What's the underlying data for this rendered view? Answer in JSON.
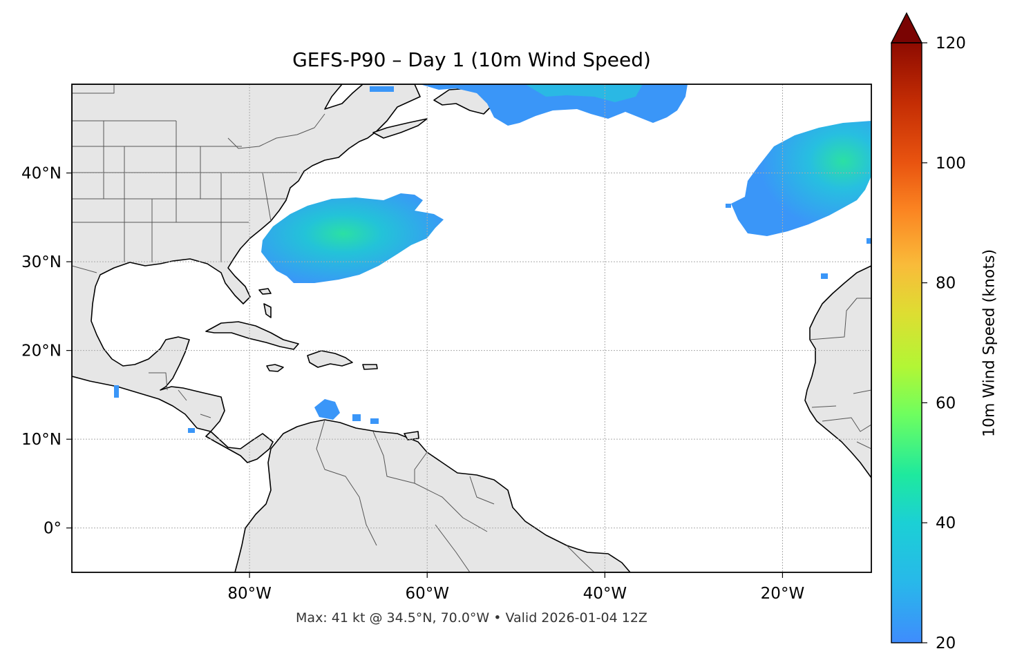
{
  "figure": {
    "title": "GEFS-P90 – Day 1 (10m Wind Speed)",
    "footer": "Max: 41 kt @ 34.5°N, 70.0°W • Valid 2026-01-04 12Z"
  },
  "map": {
    "lon_range": [
      -100,
      -10
    ],
    "lat_range": [
      -5,
      50
    ],
    "lon_ticks": [
      {
        "value": -80,
        "label": "80°W"
      },
      {
        "value": -60,
        "label": "60°W"
      },
      {
        "value": -40,
        "label": "40°W"
      },
      {
        "value": -20,
        "label": "20°W"
      }
    ],
    "lat_ticks": [
      {
        "value": 40,
        "label": "40°N"
      },
      {
        "value": 30,
        "label": "30°N"
      },
      {
        "value": 20,
        "label": "20°N"
      },
      {
        "value": 10,
        "label": "10°N"
      },
      {
        "value": 0,
        "label": "0°"
      }
    ],
    "gridlines": true,
    "land_color": "#e6e6e6",
    "ocean_color": "#ffffff"
  },
  "colorbar": {
    "label": "10m Wind Speed (knots)",
    "range": [
      20,
      120
    ],
    "extend": "max",
    "ticks": [
      {
        "value": 20,
        "label": "20"
      },
      {
        "value": 40,
        "label": "40"
      },
      {
        "value": 60,
        "label": "60"
      },
      {
        "value": 80,
        "label": "80"
      },
      {
        "value": 100,
        "label": "100"
      },
      {
        "value": 120,
        "label": "120"
      }
    ],
    "colormap": "turbo",
    "over_color": "#7a0403"
  },
  "chart_data": {
    "type": "heatmap",
    "field": "10m Wind Speed",
    "units": "knots",
    "max_value": 41,
    "max_location": {
      "lat": 34.5,
      "lon": -70.0
    },
    "valid_time": "2026-01-04 12Z",
    "wind_regions": [
      {
        "area": "off US East Coast",
        "center_lon": -71,
        "center_lat": 33,
        "peak_kt": 41
      },
      {
        "area": "eastern Atlantic near Iberia",
        "center_lon": -16,
        "center_lat": 40,
        "peak_kt": 36
      },
      {
        "area": "north Atlantic south of Newfoundland",
        "center_lon": -45,
        "center_lat": 49,
        "peak_kt": 26
      },
      {
        "area": "Caribbean off Venezuela",
        "center_lon": -72,
        "center_lat": 13,
        "peak_kt": 23
      }
    ]
  }
}
